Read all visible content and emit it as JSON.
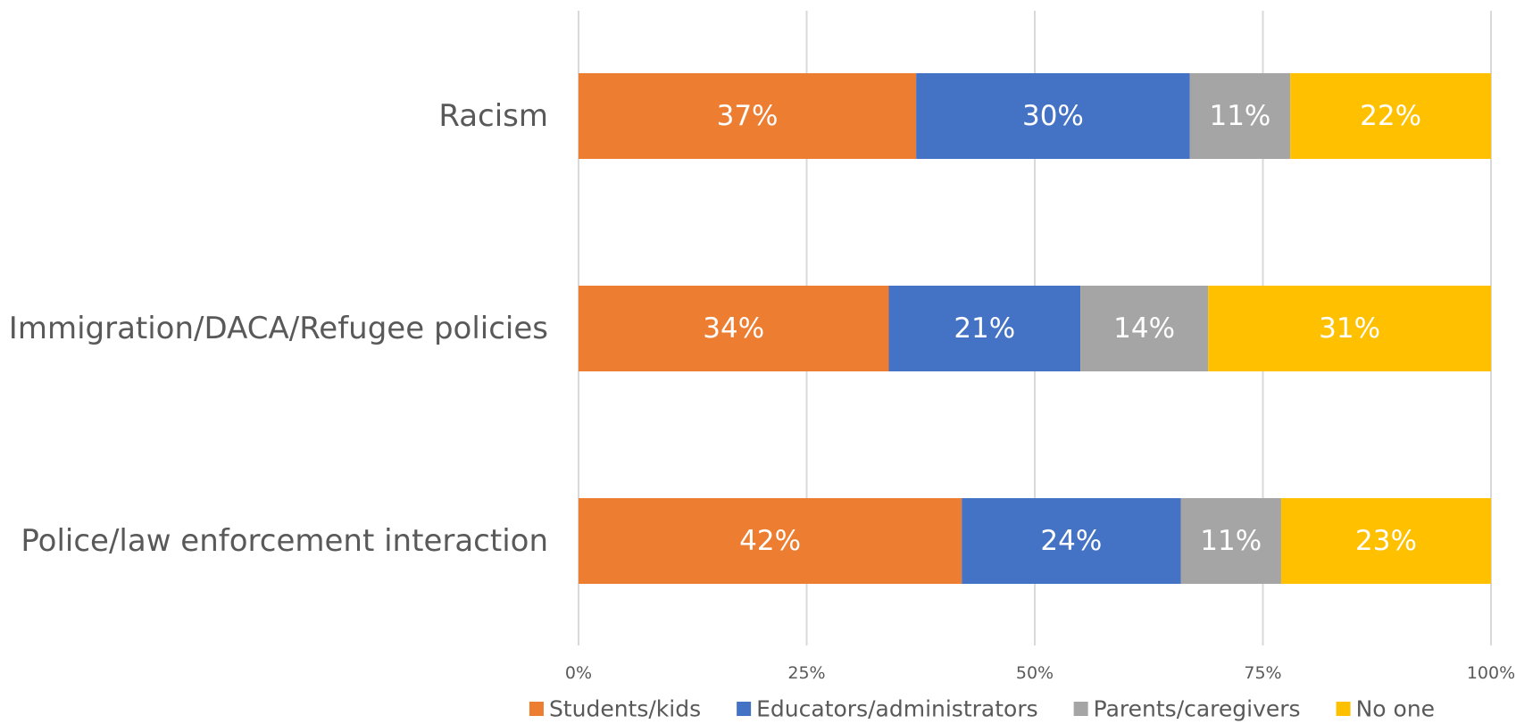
{
  "chart_data": {
    "type": "bar",
    "orientation": "horizontal",
    "stacked": true,
    "categories": [
      "Racism",
      "Immigration/DACA/Refugee policies",
      "Police/law enforcement interaction"
    ],
    "series": [
      {
        "name": "Students/kids",
        "color": "#ED7D31",
        "values": [
          37,
          34,
          42
        ],
        "labels": [
          "37%",
          "34%",
          "42%"
        ]
      },
      {
        "name": "Educators/administrators",
        "color": "#4472C4",
        "values": [
          30,
          21,
          24
        ],
        "labels": [
          "30%",
          "21%",
          "24%"
        ]
      },
      {
        "name": "Parents/caregivers",
        "color": "#A5A5A5",
        "values": [
          11,
          14,
          11
        ],
        "labels": [
          "11%",
          "14%",
          "11%"
        ]
      },
      {
        "name": "No one",
        "color": "#FFC000",
        "values": [
          22,
          31,
          23
        ],
        "labels": [
          "22%",
          "31%",
          "23%"
        ]
      }
    ],
    "xlim": [
      0,
      100
    ],
    "x_ticks": [
      0,
      25,
      50,
      75,
      100
    ],
    "x_tick_labels": [
      "0%",
      "25%",
      "50%",
      "75%",
      "100%"
    ],
    "grid": "vertical",
    "legend": "bottom",
    "title": "",
    "xlabel": "",
    "ylabel": ""
  }
}
